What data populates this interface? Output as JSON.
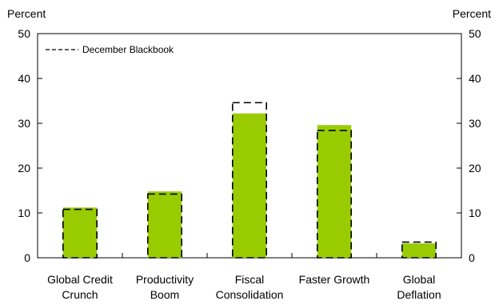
{
  "chart_data": {
    "type": "bar",
    "categories": [
      [
        "Global Credit",
        "Crunch"
      ],
      [
        "Productivity",
        "Boom"
      ],
      [
        "Fiscal",
        "Consolidation"
      ],
      [
        "Faster Growth"
      ],
      [
        "Global",
        "Deflation"
      ]
    ],
    "series": [
      {
        "values": [
          11.2,
          14.8,
          32.2,
          29.6,
          3.2
        ],
        "style": "solid-fill",
        "color": "#99cc00"
      },
      {
        "name": "December Blackbook",
        "values": [
          10.8,
          14.2,
          34.6,
          28.4,
          3.5
        ],
        "style": "dashed-outline",
        "color": "#000000"
      }
    ],
    "ylabel_left": "Percent",
    "ylabel_right": "Percent",
    "ylim": [
      0,
      50
    ],
    "yticks": [
      0,
      10,
      20,
      30,
      40,
      50
    ],
    "grid": false,
    "legend_position": "top-left"
  }
}
